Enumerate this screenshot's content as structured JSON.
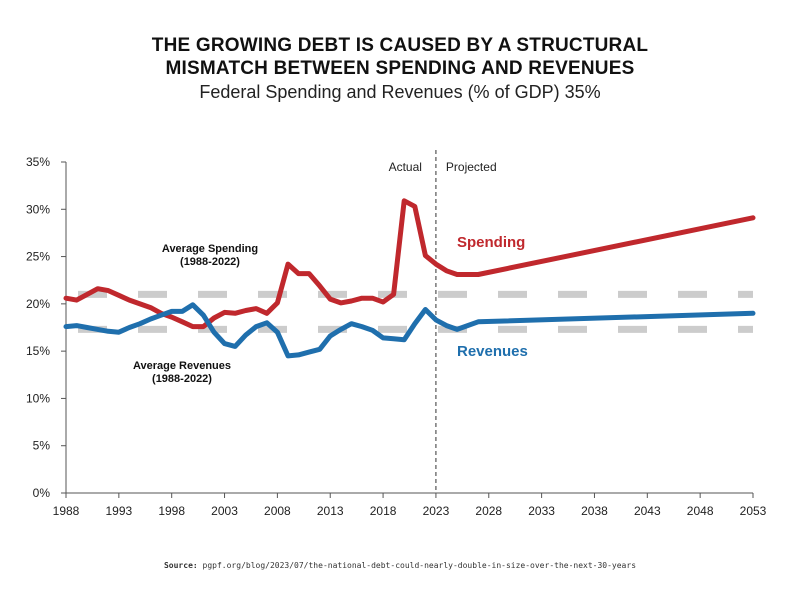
{
  "title_line1": "THE GROWING DEBT IS CAUSED BY A STRUCTURAL",
  "title_line2": "MISMATCH BETWEEN SPENDING AND REVENUES",
  "subtitle": "Federal Spending and Revenues (% of GDP) 35%",
  "source_label": "Source:",
  "source_text": "pgpf.org/blog/2023/07/the-national-debt-could-nearly-double-in-size-over-the-next-30-years",
  "chart_data": {
    "type": "line",
    "xlim": [
      1988,
      2053
    ],
    "ylim": [
      0,
      35
    ],
    "x_ticks": [
      1988,
      1993,
      1998,
      2003,
      2008,
      2013,
      2018,
      2023,
      2028,
      2033,
      2038,
      2043,
      2048,
      2053
    ],
    "y_ticks": [
      "0%",
      "5%",
      "10%",
      "15%",
      "20%",
      "25%",
      "30%",
      "35%"
    ],
    "y_tick_values": [
      0,
      5,
      10,
      15,
      20,
      25,
      30,
      35
    ],
    "grid": false,
    "divider_year": 2023,
    "divider_labels": {
      "left": "Actual",
      "right": "Projected"
    },
    "series": [
      {
        "name": "Spending",
        "color": "#c0282d",
        "x": [
          1988,
          1989,
          1990,
          1991,
          1992,
          1993,
          1994,
          1995,
          1996,
          1997,
          1998,
          1999,
          2000,
          2001,
          2002,
          2003,
          2004,
          2005,
          2006,
          2007,
          2008,
          2009,
          2010,
          2011,
          2012,
          2013,
          2014,
          2015,
          2016,
          2017,
          2018,
          2019,
          2020,
          2021,
          2022,
          2023,
          2024,
          2025,
          2027,
          2053
        ],
        "y": [
          20.6,
          20.4,
          21.0,
          21.6,
          21.4,
          20.9,
          20.4,
          20.0,
          19.6,
          19.0,
          18.6,
          18.1,
          17.6,
          17.6,
          18.5,
          19.1,
          19.0,
          19.3,
          19.5,
          19.0,
          20.1,
          24.2,
          23.2,
          23.2,
          21.9,
          20.5,
          20.1,
          20.3,
          20.6,
          20.6,
          20.2,
          21.0,
          30.9,
          30.3,
          25.1,
          24.2,
          23.5,
          23.1,
          23.1,
          29.1
        ]
      },
      {
        "name": "Revenues",
        "color": "#1f6fad",
        "x": [
          1988,
          1989,
          1990,
          1991,
          1992,
          1993,
          1994,
          1995,
          1996,
          1997,
          1998,
          1999,
          2000,
          2001,
          2002,
          2003,
          2004,
          2005,
          2006,
          2007,
          2008,
          2009,
          2010,
          2011,
          2012,
          2013,
          2014,
          2015,
          2016,
          2017,
          2018,
          2019,
          2020,
          2021,
          2022,
          2023,
          2024,
          2025,
          2027,
          2053
        ],
        "y": [
          17.6,
          17.7,
          17.5,
          17.3,
          17.1,
          17.0,
          17.5,
          17.9,
          18.4,
          18.8,
          19.2,
          19.2,
          19.9,
          18.8,
          17.0,
          15.8,
          15.5,
          16.7,
          17.6,
          18.0,
          17.0,
          14.5,
          14.6,
          14.9,
          15.2,
          16.6,
          17.3,
          17.9,
          17.6,
          17.2,
          16.4,
          16.3,
          16.2,
          17.9,
          19.4,
          18.3,
          17.7,
          17.3,
          18.1,
          19.0
        ]
      }
    ],
    "averages": [
      {
        "label_line1": "Average Spending",
        "label_line2": "(1988-2022)",
        "value": 21.0
      },
      {
        "label_line1": "Average Revenues",
        "label_line2": "(1988-2022)",
        "value": 17.3
      }
    ],
    "average_color": "#cccccc"
  }
}
